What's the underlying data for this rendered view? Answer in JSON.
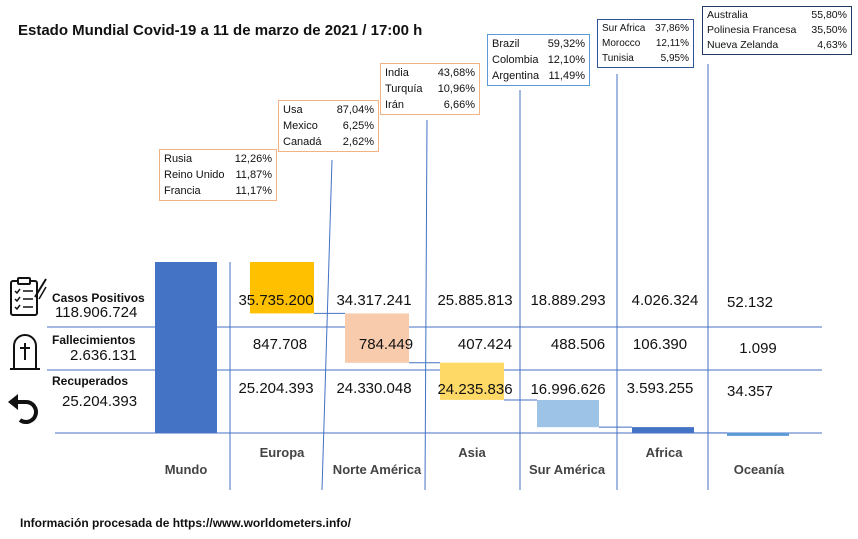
{
  "title": "Estado Mundial Covid-19 a 11 de marzo de 2021 / 17:00 h",
  "footer": "Información procesada de https://www.worldometers.info/",
  "world": {
    "positive_label": "Casos Positivos",
    "positive_value": "118.906.724",
    "deaths_label": "Fallecimientos",
    "deaths_value": "2.636.131",
    "recovered_label": "Recuperados",
    "recovered_value": "25.204.393"
  },
  "icons": {
    "cases": "clipboard-checklist-icon",
    "deaths": "tombstone-icon",
    "recovered": "undo-arrow-icon"
  },
  "colors": {
    "mundo": "#4472C4",
    "europa": "#FFC000",
    "norte_america": "#F8CBAD",
    "asia": "#FFD966",
    "sur_america": "#9DC3E6",
    "africa": "#4472C4",
    "oceania": "#5B9BD5"
  },
  "chart_data": {
    "type": "waterfall",
    "title": "Estado Mundial Covid-19 a 11 de marzo de 2021 / 17:00 h",
    "categories": [
      "Mundo",
      "Europa",
      "Norte América",
      "Asia",
      "Sur América",
      "Africa",
      "Oceanía"
    ],
    "casos_positivos": [
      118906724,
      35735200,
      34317241,
      25885813,
      18889293,
      4026324,
      52132
    ],
    "casos_positivos_label": [
      "118.906.724",
      "35.735.200",
      "34.317.241",
      "25.885.813",
      "18.889.293",
      "4.026.324",
      "52.132"
    ],
    "fallecimientos_label": [
      "2.636.131",
      "847.708",
      "784.449",
      "407.424",
      "488.506",
      "106.390",
      "1.099"
    ],
    "recuperados_label": [
      "25.204.393",
      "25.204.393",
      "24.330.048",
      "24.235.836",
      "16.996.626",
      "3.593.255",
      "34.357"
    ],
    "country_breakdown": [
      null,
      [
        [
          "Rusia",
          "12,26%"
        ],
        [
          "Reino Unido",
          "11,87%"
        ],
        [
          "Francia",
          "11,17%"
        ]
      ],
      [
        [
          "Usa",
          "87,04%"
        ],
        [
          "Mexico",
          "6,25%"
        ],
        [
          "Canadá",
          "2,62%"
        ]
      ],
      [
        [
          "India",
          "43,68%"
        ],
        [
          "Turquía",
          "10,96%"
        ],
        [
          "Irán",
          "6,66%"
        ]
      ],
      [
        [
          "Brazil",
          "59,32%"
        ],
        [
          "Colombia",
          "12,10%"
        ],
        [
          "Argentina",
          "11,49%"
        ]
      ],
      [
        [
          "Sur Africa",
          "37,86%"
        ],
        [
          "Morocco",
          "12,11%"
        ],
        [
          "Tunisia",
          "5,95%"
        ]
      ],
      [
        [
          "Australia",
          "55,80%"
        ],
        [
          "Polinesia Francesa",
          "35,50%"
        ],
        [
          "Nueva Zelanda",
          "4,63%"
        ]
      ]
    ]
  }
}
